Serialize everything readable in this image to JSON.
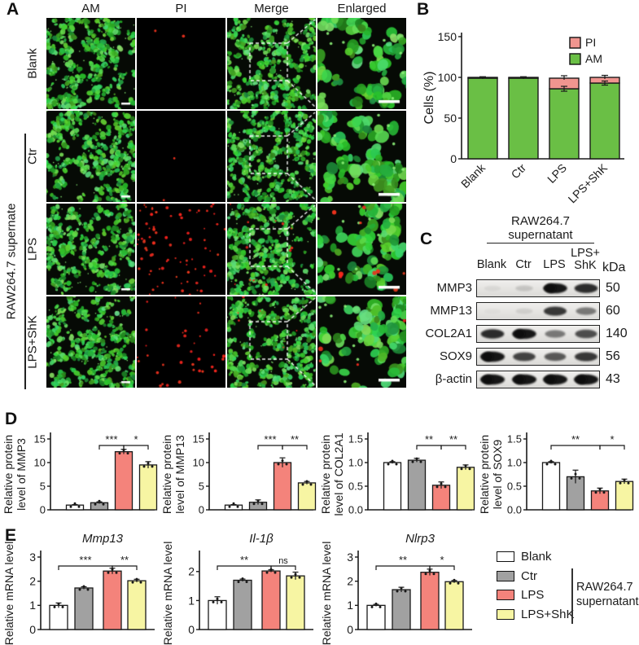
{
  "figure_colors": {
    "bar_fill": [
      "#ffffff",
      "#a1a1a1",
      "#f4837b",
      "#f7f5a3"
    ],
    "green": "#6abf45",
    "pink": "#f0958f",
    "outline": "#1a1a1a"
  },
  "panels": {
    "A": {
      "label": "A",
      "col_headers": [
        "AM",
        "PI",
        "Merge",
        "Enlarged"
      ],
      "row_labels": [
        "Blank",
        "Ctr",
        "LPS",
        "LPS+ShK"
      ],
      "side_label": "RAW264.7 supernate"
    },
    "B": {
      "label": "B"
    },
    "C": {
      "label": "C",
      "header": [
        "RAW264.7",
        "supernatant"
      ],
      "lane_labels": [
        [
          "Blank"
        ],
        [
          "Ctr"
        ],
        [
          "LPS"
        ],
        [
          "LPS+",
          "ShK"
        ]
      ],
      "unit": "kDa",
      "rows": [
        {
          "protein": "MMP3",
          "kda": "50",
          "bands": [
            0.06,
            0.15,
            0.95,
            0.85
          ]
        },
        {
          "protein": "MMP13",
          "kda": "60",
          "bands": [
            0.03,
            0.1,
            0.8,
            0.5
          ]
        },
        {
          "protein": "COL2A1",
          "kda": "140",
          "bands": [
            0.85,
            0.95,
            0.5,
            0.7
          ]
        },
        {
          "protein": "SOX9",
          "kda": "56",
          "bands": [
            1.0,
            0.75,
            0.65,
            0.8
          ]
        },
        {
          "protein": "β-actin",
          "kda": "43",
          "bands": [
            1.0,
            1.0,
            1.0,
            1.0
          ]
        }
      ]
    },
    "D": {
      "label": "D"
    },
    "E": {
      "label": "E",
      "legend": {
        "items": [
          {
            "label": "Blank",
            "color": "#ffffff"
          },
          {
            "label": "Ctr",
            "color": "#a1a1a1"
          },
          {
            "label": "LPS",
            "color": "#f4837b"
          },
          {
            "label": "LPS+ShK",
            "color": "#f7f5a3"
          }
        ],
        "bracket_label": [
          "RAW264.7",
          "supernatant"
        ]
      }
    }
  },
  "chart_data": [
    {
      "id": "B",
      "type": "stacked-bar",
      "title": "",
      "ylabel": "Cells (%)",
      "categories": [
        "Blank",
        "Ctr",
        "LPS",
        "LPS+ShK"
      ],
      "ylim": [
        0,
        150
      ],
      "yticks": [
        "0",
        "50",
        "100",
        "150"
      ],
      "series": [
        {
          "name": "AM",
          "color": "#6abf45",
          "values": [
            99,
            99,
            86,
            93
          ],
          "errors": [
            0.8,
            0.8,
            3,
            2.5
          ]
        },
        {
          "name": "PI",
          "color": "#f0958f",
          "values": [
            1,
            1,
            13,
            7
          ],
          "errors": [
            0.8,
            0.8,
            3,
            2.5
          ]
        }
      ],
      "legend": [
        {
          "label": "PI",
          "color": "#f0958f"
        },
        {
          "label": "AM",
          "color": "#6abf45"
        }
      ]
    },
    {
      "id": "D_MMP3",
      "type": "bar",
      "ylabel": [
        "Relative protein",
        "level of MMP3"
      ],
      "categories": [
        "Blank",
        "Ctr",
        "LPS",
        "LPS+ShK"
      ],
      "ylim": [
        0,
        15
      ],
      "yticks": [
        "0",
        "5",
        "10",
        "15"
      ],
      "values": [
        1.0,
        1.5,
        12.3,
        9.5
      ],
      "errors": [
        0.1,
        0.2,
        0.5,
        0.7
      ],
      "sig": [
        {
          "a": 1,
          "b": 2,
          "label": "***"
        },
        {
          "a": 2,
          "b": 3,
          "label": "*"
        }
      ]
    },
    {
      "id": "D_MMP13",
      "type": "bar",
      "ylabel": [
        "Relative protein",
        "level of MMP13"
      ],
      "categories": [
        "Blank",
        "Ctr",
        "LPS",
        "LPS+ShK"
      ],
      "ylim": [
        0,
        15
      ],
      "yticks": [
        "0",
        "5",
        "10",
        "15"
      ],
      "values": [
        1.0,
        1.6,
        10.0,
        5.7
      ],
      "errors": [
        0.1,
        0.5,
        1.0,
        0.3
      ],
      "sig": [
        {
          "a": 1,
          "b": 2,
          "label": "***"
        },
        {
          "a": 2,
          "b": 3,
          "label": "**"
        }
      ]
    },
    {
      "id": "D_COL2A1",
      "type": "bar",
      "ylabel": [
        "Relative protein",
        "level of COL2A1"
      ],
      "categories": [
        "Blank",
        "Ctr",
        "LPS",
        "LPS+ShK"
      ],
      "ylim": [
        0,
        1.5
      ],
      "yticks": [
        "0.0",
        "0.5",
        "1.0",
        "1.5"
      ],
      "values": [
        1.0,
        1.05,
        0.52,
        0.9
      ],
      "errors": [
        0.02,
        0.04,
        0.07,
        0.05
      ],
      "sig": [
        {
          "a": 1,
          "b": 2,
          "label": "**"
        },
        {
          "a": 2,
          "b": 3,
          "label": "**"
        }
      ]
    },
    {
      "id": "D_SOX9",
      "type": "bar",
      "ylabel": [
        "Relative protein",
        "level of SOX9"
      ],
      "categories": [
        "Blank",
        "Ctr",
        "LPS",
        "LPS+ShK"
      ],
      "ylim": [
        0,
        1.5
      ],
      "yticks": [
        "0.0",
        "0.5",
        "1.0",
        "1.5"
      ],
      "values": [
        1.0,
        0.7,
        0.4,
        0.6
      ],
      "errors": [
        0.02,
        0.14,
        0.06,
        0.05
      ],
      "sig": [
        {
          "a": 0,
          "b": 2,
          "label": "**"
        },
        {
          "a": 2,
          "b": 3,
          "label": "*"
        }
      ]
    },
    {
      "id": "E_Mmp13",
      "type": "bar",
      "title": "Mmp13",
      "ylabel": "Relative mRNA level",
      "categories": [
        "Blank",
        "Ctr",
        "LPS",
        "LPS+ShK"
      ],
      "ylim": [
        0,
        3
      ],
      "yticks": [
        "0",
        "1",
        "2",
        "3"
      ],
      "values": [
        1.0,
        1.72,
        2.42,
        2.02
      ],
      "errors": [
        0.1,
        0.05,
        0.12,
        0.06
      ],
      "sig": [
        {
          "a": 0,
          "b": 2,
          "label": "***"
        },
        {
          "a": 2,
          "b": 3,
          "label": "**"
        }
      ]
    },
    {
      "id": "E_Il1b",
      "type": "bar",
      "title": "Il-1β",
      "ylabel": "Relative mRNA level",
      "categories": [
        "Blank",
        "Ctr",
        "LPS",
        "LPS+ShK"
      ],
      "ylim": [
        0,
        2.5
      ],
      "yticks": [
        "0",
        "1",
        "2"
      ],
      "values": [
        1.0,
        1.7,
        2.02,
        1.85
      ],
      "errors": [
        0.13,
        0.04,
        0.04,
        0.13
      ],
      "sig": [
        {
          "a": 0,
          "b": 2,
          "label": "**"
        },
        {
          "a": 2,
          "b": 3,
          "label": "ns"
        }
      ]
    },
    {
      "id": "E_Nlrp3",
      "type": "bar",
      "title": "Nlrp3",
      "ylabel": "Relative mRNA level",
      "categories": [
        "Blank",
        "Ctr",
        "LPS",
        "LPS+ShK"
      ],
      "ylim": [
        0,
        3
      ],
      "yticks": [
        "0",
        "1",
        "2",
        "3"
      ],
      "values": [
        1.0,
        1.65,
        2.37,
        1.98
      ],
      "errors": [
        0.04,
        0.1,
        0.13,
        0.05
      ],
      "sig": [
        {
          "a": 0,
          "b": 2,
          "label": "**"
        },
        {
          "a": 2,
          "b": 3,
          "label": "*"
        }
      ]
    }
  ]
}
